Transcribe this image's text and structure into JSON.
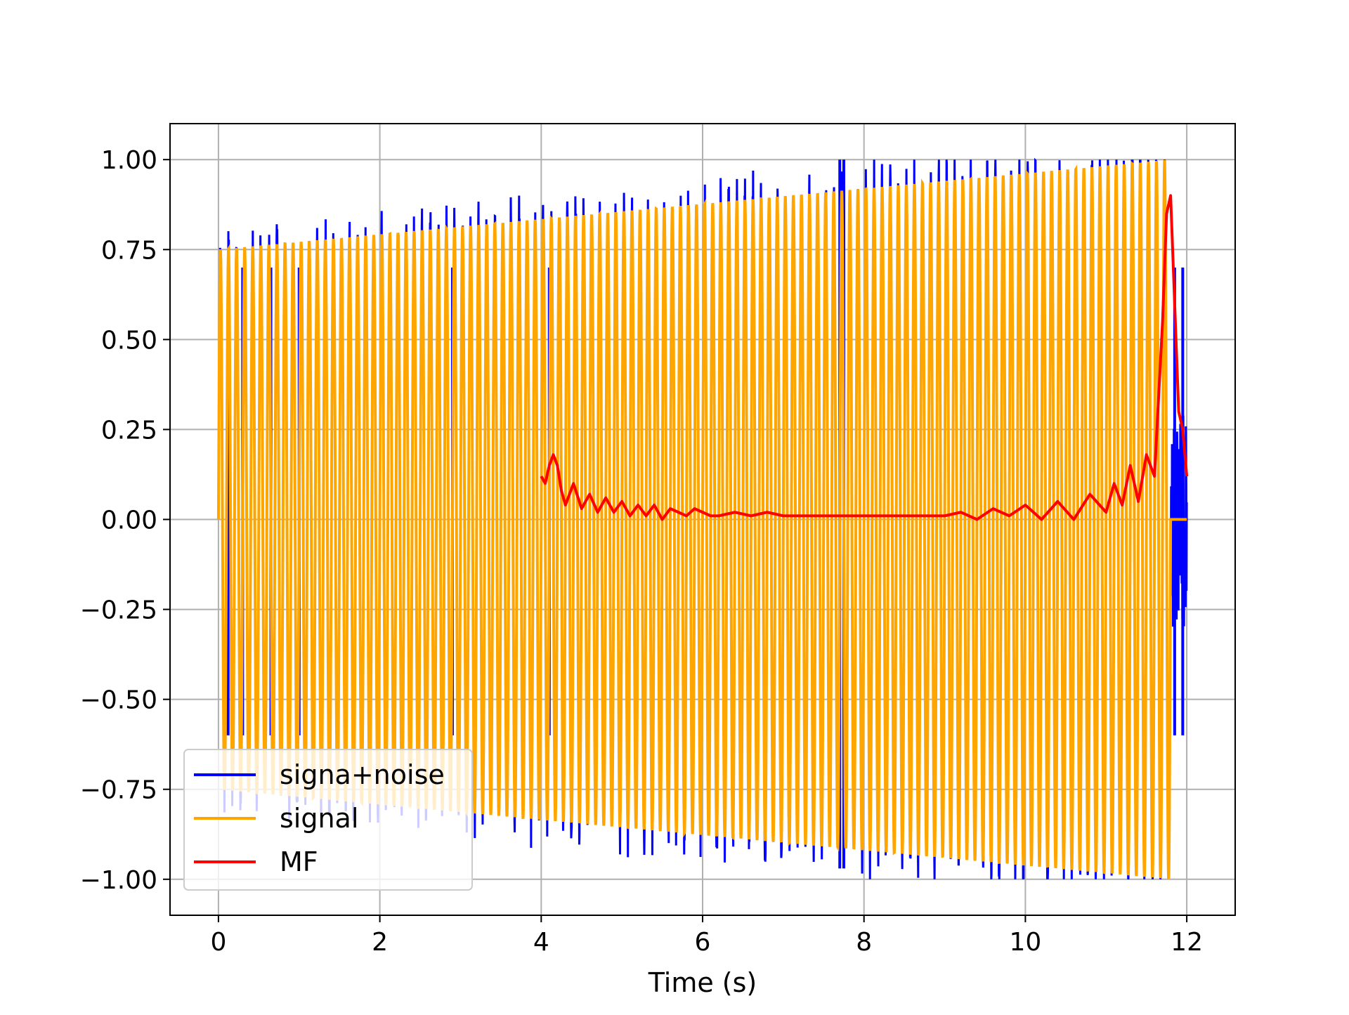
{
  "chart_data": {
    "type": "line",
    "title": "",
    "xlabel": "Time (s)",
    "ylabel": "",
    "xlim": [
      -0.6,
      12.6
    ],
    "ylim": [
      -1.1,
      1.1
    ],
    "xticks": [
      0,
      2,
      4,
      6,
      8,
      10,
      12
    ],
    "yticks": [
      1.0,
      0.75,
      0.5,
      0.25,
      0.0,
      -0.25,
      -0.5,
      -0.75,
      -1.0
    ],
    "xtick_labels": [
      "0",
      "2",
      "4",
      "6",
      "8",
      "10",
      "12"
    ],
    "ytick_labels": [
      "1.00",
      "0.75",
      "0.50",
      "0.25",
      "0.00",
      "−0.25",
      "−0.50",
      "−0.75",
      "−1.00"
    ],
    "grid": true,
    "legend_position": "lower-left",
    "series": [
      {
        "name": "signa+noise",
        "color": "#0000ff",
        "x_range": [
          0,
          12
        ],
        "description_values": {
          "max": 1.0,
          "min": -0.97,
          "spike_times": [
            0.12,
            0.3,
            0.65,
            1.0,
            2.9,
            4.1,
            7.7,
            7.75,
            11.85,
            11.95
          ]
        }
      },
      {
        "name": "signal",
        "color": "#ffa500",
        "x_range": [
          0,
          11.8
        ],
        "envelope_start": 0.75,
        "envelope_end": 1.0
      },
      {
        "name": "MF",
        "color": "#ff0000",
        "x": [
          4.0,
          4.05,
          4.1,
          4.15,
          4.2,
          4.25,
          4.3,
          4.4,
          4.5,
          4.6,
          4.7,
          4.8,
          4.9,
          5.0,
          5.1,
          5.2,
          5.3,
          5.4,
          5.5,
          5.6,
          5.7,
          5.8,
          5.9,
          6.0,
          6.1,
          6.2,
          6.4,
          6.6,
          6.8,
          7.0,
          7.5,
          8.0,
          8.5,
          9.0,
          9.2,
          9.4,
          9.6,
          9.8,
          10.0,
          10.2,
          10.4,
          10.6,
          10.8,
          11.0,
          11.1,
          11.2,
          11.3,
          11.4,
          11.5,
          11.6,
          11.7,
          11.75,
          11.8,
          11.85,
          11.9,
          11.95,
          12.0
        ],
        "y": [
          0.12,
          0.1,
          0.15,
          0.18,
          0.15,
          0.08,
          0.04,
          0.1,
          0.03,
          0.07,
          0.02,
          0.06,
          0.02,
          0.05,
          0.01,
          0.04,
          0.01,
          0.04,
          0.0,
          0.03,
          0.02,
          0.01,
          0.03,
          0.02,
          0.01,
          0.01,
          0.02,
          0.01,
          0.02,
          0.01,
          0.01,
          0.01,
          0.01,
          0.01,
          0.02,
          0.0,
          0.03,
          0.01,
          0.04,
          0.0,
          0.05,
          0.0,
          0.07,
          0.02,
          0.1,
          0.04,
          0.15,
          0.05,
          0.18,
          0.12,
          0.55,
          0.85,
          0.9,
          0.6,
          0.3,
          0.25,
          0.12
        ]
      }
    ]
  }
}
